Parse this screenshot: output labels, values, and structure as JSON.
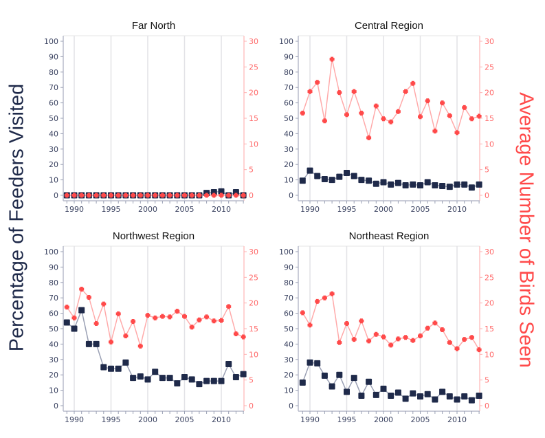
{
  "chart_data": {
    "type": "line",
    "y_left_label": "Percentage of Feeders Visited",
    "y_right_label": "Average Number of Birds Seen",
    "x": [
      1989,
      1990,
      1991,
      1992,
      1993,
      1994,
      1995,
      1996,
      1997,
      1998,
      1999,
      2000,
      2001,
      2002,
      2003,
      2004,
      2005,
      2006,
      2007,
      2008,
      2009,
      2010,
      2011,
      2012,
      2013
    ],
    "x_ticks": [
      1990,
      1995,
      2000,
      2005,
      2010
    ],
    "y_left_ticks": [
      0,
      10,
      20,
      30,
      40,
      50,
      60,
      70,
      80,
      90,
      100
    ],
    "y_right_ticks": [
      0,
      5,
      10,
      15,
      20,
      25,
      30
    ],
    "y_left_range": [
      0,
      100
    ],
    "y_right_range": [
      0,
      30
    ],
    "grid": "vertical at x ticks",
    "colors": {
      "percent": "#1f2a4a",
      "birds": "#ff4a4a",
      "percent_line": "#9aa0b4",
      "birds_line": "#ffaaaa"
    },
    "panels": [
      {
        "title": "Far North",
        "percent": [
          0,
          0,
          0,
          0,
          0,
          0,
          0,
          0,
          0,
          0,
          0,
          0,
          0,
          0,
          0,
          0,
          0,
          0,
          0,
          1.5,
          2,
          2.5,
          0,
          2,
          0
        ],
        "birds": [
          0,
          0,
          0,
          0,
          0,
          0,
          0,
          0,
          0,
          0,
          0,
          0,
          0,
          0,
          0,
          0,
          0,
          0,
          0,
          0,
          0,
          0,
          0,
          0,
          0
        ]
      },
      {
        "title": "Central Region",
        "percent": [
          9.5,
          16,
          12.5,
          10.5,
          10,
          12,
          14.5,
          12.5,
          10,
          9.5,
          7.5,
          8.5,
          7,
          8,
          6.5,
          7,
          6.5,
          8.5,
          6.5,
          6,
          5.5,
          7,
          7,
          5,
          7
        ],
        "birds": [
          16,
          20.2,
          22,
          14.5,
          26.5,
          20,
          15.7,
          20.2,
          16,
          11.2,
          17.4,
          14.9,
          14.3,
          16.3,
          20.2,
          21.8,
          15.3,
          18.4,
          12.5,
          18,
          15.5,
          12.2,
          17.1,
          14.9,
          15.4
        ]
      },
      {
        "title": "Northwest Region",
        "percent": [
          54,
          50,
          62,
          40,
          40,
          25,
          24,
          24,
          28,
          18,
          19,
          17,
          22,
          18,
          18,
          14.5,
          18.5,
          17,
          14,
          16,
          16,
          16,
          27,
          18.5,
          20.5
        ],
        "birds": [
          19.2,
          17.1,
          22.7,
          21.1,
          16,
          19.8,
          12.4,
          17.9,
          13.6,
          16.4,
          11.6,
          17.6,
          17.1,
          17.4,
          17.3,
          18.4,
          17.4,
          15.3,
          16.7,
          17.3,
          16.5,
          16.6,
          19.3,
          14,
          13.4
        ]
      },
      {
        "title": "Northeast Region",
        "percent": [
          15,
          28,
          27.5,
          19.5,
          12.5,
          20,
          9,
          18,
          6.5,
          15.5,
          7,
          11,
          6.5,
          8.5,
          4.5,
          8,
          6,
          7.5,
          4,
          9,
          6,
          4,
          6,
          3.5,
          6.5
        ],
        "birds": [
          18.1,
          15.7,
          20.3,
          21,
          21.8,
          12.3,
          16,
          12.9,
          16.5,
          12.6,
          13.9,
          13.4,
          11.8,
          13,
          13.3,
          12.7,
          13.6,
          15.1,
          16.1,
          14.8,
          12.3,
          11.1,
          12.9,
          13.3,
          10.9
        ]
      }
    ]
  }
}
